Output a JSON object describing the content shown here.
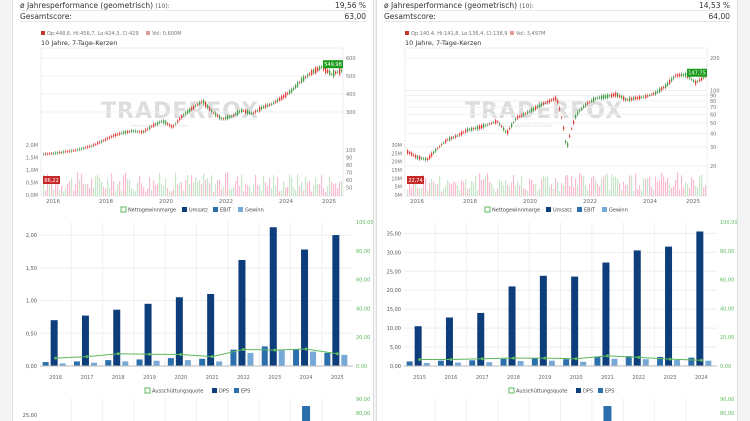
{
  "panels": [
    {
      "metrics": [
        {
          "label": "ø Jahresperformance (geometrisch)",
          "sub": "(10):",
          "value": "19,56 %"
        },
        {
          "label": "Gesamtscore:",
          "sub": "",
          "value": "63,00"
        }
      ],
      "price_chart": {
        "ohlc_label": "Op:448,6, Hi:456,7, Lo:424,3, Cl:429",
        "vol_label": "Vol: 0,600M",
        "subtitle": "10 Jahre, 7-Tage-Kerzen",
        "watermark": "TRADERFOX",
        "watermark_tagline": "FINANCIAL ANALYSIS SOLUTIONS",
        "price_axis": {
          "min": 0,
          "max": 600,
          "ticks": [
            600,
            500,
            400,
            300
          ],
          "log": false
        },
        "low_axis_ticks": [
          100,
          90,
          80,
          70,
          60,
          50
        ],
        "volume_axis_ticks": [
          "2,0M",
          "1,5M",
          "1,0M",
          "0,5M",
          "0,0M"
        ],
        "x_ticks": [
          "2016",
          "2018",
          "2020",
          "2022",
          "2024",
          "2025"
        ],
        "current_price_badge": "549,98",
        "low_price_badge": "66,22",
        "price_points": [
          66,
          70,
          78,
          85,
          98,
          115,
          140,
          168,
          185,
          195,
          188,
          225,
          250,
          215,
          280,
          322,
          360,
          300,
          260,
          278,
          310,
          290,
          325,
          345,
          380,
          420,
          478,
          520,
          550,
          510,
          530
        ]
      },
      "bar_chart": {
        "legend": [
          "Nettogewinnmarge",
          "Umsatz",
          "EBIT",
          "Gewinn"
        ],
        "categories": [
          "2016",
          "2017",
          "2018",
          "2019",
          "2020",
          "2021",
          "2022",
          "2023",
          "2024",
          "2025"
        ],
        "left_ticks": [
          "2,00",
          "1,50",
          "1,00",
          "0,50",
          "0,00"
        ],
        "right_ticks": [
          "100,00",
          "80,00",
          "60,00",
          "40,00",
          "20,00",
          "0,00"
        ],
        "left_max": 2.2,
        "right_max": 100,
        "umsatz": [
          0.7,
          0.77,
          0.86,
          0.95,
          1.05,
          1.1,
          1.62,
          2.12,
          1.78,
          2.0
        ],
        "ebit": [
          0.06,
          0.07,
          0.09,
          0.1,
          0.12,
          0.11,
          0.25,
          0.3,
          0.26,
          0.2
        ],
        "gewinn": [
          0.04,
          0.05,
          0.07,
          0.08,
          0.09,
          0.07,
          0.2,
          0.25,
          0.22,
          0.17
        ],
        "nettogewinnmarge": [
          5.5,
          6.5,
          8.5,
          8.2,
          8.0,
          6.5,
          11.5,
          11.0,
          11.8,
          8.5
        ]
      },
      "dps_chart": {
        "legend": [
          "Ausschüttungsquote",
          "DPS",
          "EPS"
        ],
        "left_ticks": [
          "25,00"
        ],
        "right_ticks": [
          "90,00",
          "80,00"
        ],
        "left_max": 25,
        "right_max": 90,
        "dps": [
          0,
          0,
          0,
          0,
          0,
          0,
          0,
          0,
          23,
          0
        ]
      }
    },
    {
      "metrics": [
        {
          "label": "ø Jahresperformance (geometrisch)",
          "sub": "(10):",
          "value": "14,53 %"
        },
        {
          "label": "Gesamtscore:",
          "sub": "",
          "value": "64,00"
        }
      ],
      "price_chart": {
        "ohlc_label": "Op:140,4, Hi:141,8, Lo:136,4, Cl:138,9",
        "vol_label": "Vol: 3,497M",
        "subtitle": "10 Jahre, 7-Tage-Kerzen",
        "watermark": "TRADERFOX",
        "watermark_tagline": "FINANCIAL ANALYSIS SOLUTIONS",
        "price_axis": {
          "min": 20,
          "max": 200,
          "ticks": [
            200,
            100,
            90,
            80,
            70,
            60,
            50,
            40,
            30,
            20
          ],
          "log": true
        },
        "low_axis_ticks": [],
        "volume_axis_ticks": [
          "30M",
          "25M",
          "20M",
          "15M",
          "10M",
          "5M",
          "0M"
        ],
        "x_ticks": [
          "2016",
          "2018",
          "2020",
          "2022",
          "2024",
          "2025"
        ],
        "current_price_badge": "147,75",
        "low_price_badge": "22,74",
        "price_points": [
          27,
          24,
          23,
          29,
          35,
          38,
          43,
          45,
          48,
          52,
          40,
          56,
          62,
          70,
          78,
          85,
          28,
          60,
          75,
          85,
          88,
          92,
          82,
          85,
          88,
          95,
          110,
          138,
          140,
          118,
          135
        ]
      },
      "bar_chart": {
        "legend": [
          "Nettogewinnmarge",
          "Umsatz",
          "EBIT",
          "Gewinn"
        ],
        "categories": [
          "2015",
          "2016",
          "2017",
          "2018",
          "2019",
          "2020",
          "2021",
          "2022",
          "2023",
          "2024"
        ],
        "left_ticks": [
          "35,00",
          "30,00",
          "25,00",
          "20,00",
          "15,00",
          "10,00",
          "5,00",
          "0,00"
        ],
        "right_ticks": [
          "100,00",
          "80,00",
          "60,00",
          "40,00",
          "20,00",
          "0,00"
        ],
        "left_max": 38,
        "right_max": 100,
        "umsatz": [
          10.5,
          12.8,
          14.0,
          21.0,
          23.8,
          23.6,
          27.3,
          30.5,
          31.5,
          35.5
        ],
        "ebit": [
          1.2,
          1.4,
          1.5,
          1.9,
          2.1,
          1.8,
          2.5,
          2.6,
          2.4,
          2.2
        ],
        "gewinn": [
          0.8,
          0.9,
          1.0,
          1.3,
          1.4,
          1.1,
          1.9,
          1.8,
          1.6,
          1.4
        ],
        "nettogewinnmarge": [
          4.5,
          4.5,
          5.0,
          5.5,
          5.5,
          5.0,
          7.0,
          6.0,
          4.8,
          4.0
        ]
      },
      "dps_chart": {
        "legend": [
          "Ausschüttungsquote",
          "DPS",
          "EPS"
        ],
        "left_ticks": [],
        "right_ticks": [
          "90,00",
          "80,00"
        ],
        "left_max": 25,
        "right_max": 90,
        "dps": [
          0,
          0,
          0,
          0,
          0,
          0,
          23,
          0,
          0,
          0
        ]
      }
    }
  ]
}
